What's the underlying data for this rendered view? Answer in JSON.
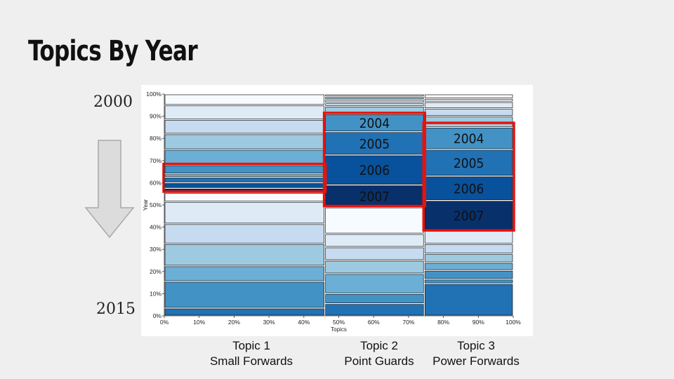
{
  "slide": {
    "title": "Topics By Year",
    "year_start": "2000",
    "year_end": "2015"
  },
  "colors": {
    "background": "#efefef",
    "highlight": "#e8120c",
    "scale": [
      "#f7fbff",
      "#deebf7",
      "#c6dbef",
      "#9ecae1",
      "#6baed6",
      "#4292c6",
      "#2171b5",
      "#08519c",
      "#08306b"
    ]
  },
  "chart_data": {
    "type": "mosaic",
    "xlabel": "Topics",
    "ylabel": "Year",
    "x_ticks": [
      "0%",
      "10%",
      "20%",
      "30%",
      "40%",
      "50%",
      "60%",
      "70%",
      "80%",
      "90%",
      "100%"
    ],
    "y_ticks": [
      "0%",
      "10%",
      "20%",
      "30%",
      "40%",
      "50%",
      "60%",
      "70%",
      "80%",
      "90%",
      "100%"
    ],
    "topics": [
      {
        "name": "Topic 1",
        "subtitle": "Small Forwards",
        "x_start": 0,
        "x_end": 46,
        "segments": [
          {
            "lo": 0,
            "hi": 3.5,
            "c": "#2171b5"
          },
          {
            "lo": 3.5,
            "hi": 15.5,
            "c": "#4292c6"
          },
          {
            "lo": 15.5,
            "hi": 22.5,
            "c": "#6baed6"
          },
          {
            "lo": 22.5,
            "hi": 32.5,
            "c": "#9ecae1"
          },
          {
            "lo": 32.5,
            "hi": 41.5,
            "c": "#c6dbef"
          },
          {
            "lo": 41.5,
            "hi": 51.5,
            "c": "#deebf7"
          },
          {
            "lo": 51.5,
            "hi": 55.5,
            "c": "#f7fbff"
          },
          {
            "lo": 55.5,
            "hi": 57.5,
            "c": "#08306b"
          },
          {
            "lo": 57.5,
            "hi": 60,
            "c": "#08519c"
          },
          {
            "lo": 60,
            "hi": 62.5,
            "c": "#2171b5"
          },
          {
            "lo": 62.5,
            "hi": 64,
            "c": "#6baed6"
          },
          {
            "lo": 64,
            "hi": 68,
            "c": "#4292c6"
          },
          {
            "lo": 68,
            "hi": 75,
            "c": "#6baed6"
          },
          {
            "lo": 75,
            "hi": 82,
            "c": "#9ecae1"
          },
          {
            "lo": 82,
            "hi": 88.5,
            "c": "#c6dbef"
          },
          {
            "lo": 88.5,
            "hi": 95,
            "c": "#deebf7"
          },
          {
            "lo": 95,
            "hi": 100,
            "c": "#f7fbff"
          }
        ],
        "highlight": {
          "lo": 56,
          "hi": 68.5
        }
      },
      {
        "name": "Topic 2",
        "subtitle": "Point Guards",
        "x_start": 46,
        "x_end": 74.5,
        "segments": [
          {
            "lo": 0,
            "hi": 5.5,
            "c": "#2171b5"
          },
          {
            "lo": 5.5,
            "hi": 10,
            "c": "#4292c6"
          },
          {
            "lo": 10,
            "hi": 19,
            "c": "#6baed6"
          },
          {
            "lo": 19,
            "hi": 25,
            "c": "#9ecae1"
          },
          {
            "lo": 25,
            "hi": 31,
            "c": "#c6dbef"
          },
          {
            "lo": 31,
            "hi": 37,
            "c": "#deebf7"
          },
          {
            "lo": 37,
            "hi": 49,
            "c": "#f7fbff"
          },
          {
            "lo": 49,
            "hi": 59,
            "c": "#08306b",
            "label": "2007"
          },
          {
            "lo": 59,
            "hi": 72.5,
            "c": "#08519c",
            "label": "2006"
          },
          {
            "lo": 72.5,
            "hi": 83,
            "c": "#2171b5",
            "label": "2005"
          },
          {
            "lo": 83,
            "hi": 91,
            "c": "#4292c6",
            "label": "2004"
          },
          {
            "lo": 91,
            "hi": 94.5,
            "c": "#9ecae1"
          },
          {
            "lo": 94.5,
            "hi": 96,
            "c": "#c6dbef"
          },
          {
            "lo": 96,
            "hi": 97.5,
            "c": "#deebf7"
          },
          {
            "lo": 97.5,
            "hi": 98.8,
            "c": "#9ecae1"
          },
          {
            "lo": 98.8,
            "hi": 100,
            "c": "#f7fbff"
          }
        ],
        "highlight": {
          "lo": 49.5,
          "hi": 91.5
        }
      },
      {
        "name": "Topic 3",
        "subtitle": "Power Forwards",
        "x_start": 74.5,
        "x_end": 100,
        "segments": [
          {
            "lo": 0,
            "hi": 14.5,
            "c": "#2171b5"
          },
          {
            "lo": 14.5,
            "hi": 16.5,
            "c": "#4292c6"
          },
          {
            "lo": 16.5,
            "hi": 20.5,
            "c": "#4292c6"
          },
          {
            "lo": 20.5,
            "hi": 24,
            "c": "#6baed6"
          },
          {
            "lo": 24,
            "hi": 28,
            "c": "#9ecae1"
          },
          {
            "lo": 28,
            "hi": 32.5,
            "c": "#c6dbef"
          },
          {
            "lo": 32.5,
            "hi": 38.5,
            "c": "#deebf7"
          },
          {
            "lo": 38.5,
            "hi": 52,
            "c": "#08306b",
            "label": "2007"
          },
          {
            "lo": 52,
            "hi": 63,
            "c": "#08519c",
            "label": "2006"
          },
          {
            "lo": 63,
            "hi": 75,
            "c": "#2171b5",
            "label": "2005"
          },
          {
            "lo": 75,
            "hi": 85,
            "c": "#4292c6",
            "label": "2004"
          },
          {
            "lo": 85,
            "hi": 90,
            "c": "#9ecae1"
          },
          {
            "lo": 90,
            "hi": 93.5,
            "c": "#c6dbef"
          },
          {
            "lo": 93.5,
            "hi": 96.5,
            "c": "#deebf7"
          },
          {
            "lo": 96.5,
            "hi": 98,
            "c": "#f7fbff"
          },
          {
            "lo": 98,
            "hi": 100,
            "c": "#f7fbff"
          }
        ],
        "highlight": {
          "lo": 38.5,
          "hi": 87
        }
      }
    ]
  }
}
